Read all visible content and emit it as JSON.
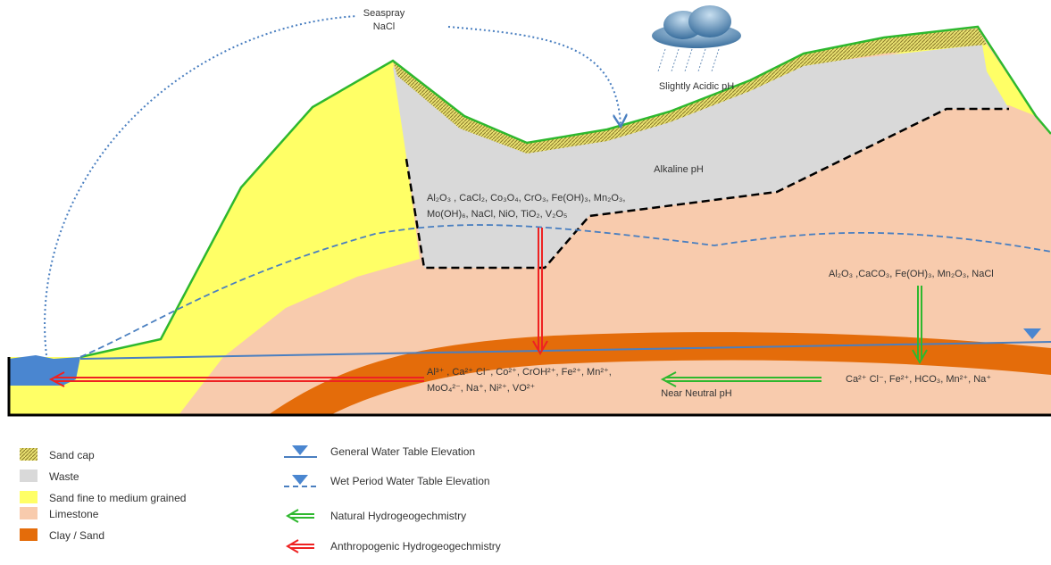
{
  "labels": {
    "seaspray": "Seaspray",
    "nacl": "NaCl",
    "acidic": "Slightly Acidic pH",
    "alkaline": "Alkaline pH",
    "waste_compounds": [
      "Al₂O₃ , CaCl₂, Co₃O₄, CrO₃, Fe(OH)₃, Mn₂O₃,",
      "Mo(OH)₆, NaCl, NiO, TiO₂, V₂O₅"
    ],
    "natural_compounds": "Al₂O₃ ,CaCO₃, Fe(OH)₃, Mn₂O₃, NaCl",
    "anthropogenic_ions": [
      "Al³⁺ , Ca²⁺ Cl⁻, Co²⁺, CrOH²⁺, Fe²⁺, Mn²⁺,",
      "MoO₄²⁻, Na⁺, Ni²⁺, VO²⁺"
    ],
    "natural_ions": "Ca²⁺ Cl⁻, Fe²⁺, HCO₃, Mn²⁺, Na⁺",
    "near_neutral": "Near Neutral pH"
  },
  "legend": {
    "materials": [
      "Sand cap",
      "Waste",
      "Sand fine to medium grained",
      "Limestone",
      "Clay / Sand"
    ],
    "lines": [
      "General Water Table Elevation",
      "Wet Period Water Table Elevation",
      "Natural Hydrogeogechmistry",
      "Anthropogenic Hydrogeogechmistry"
    ]
  }
}
